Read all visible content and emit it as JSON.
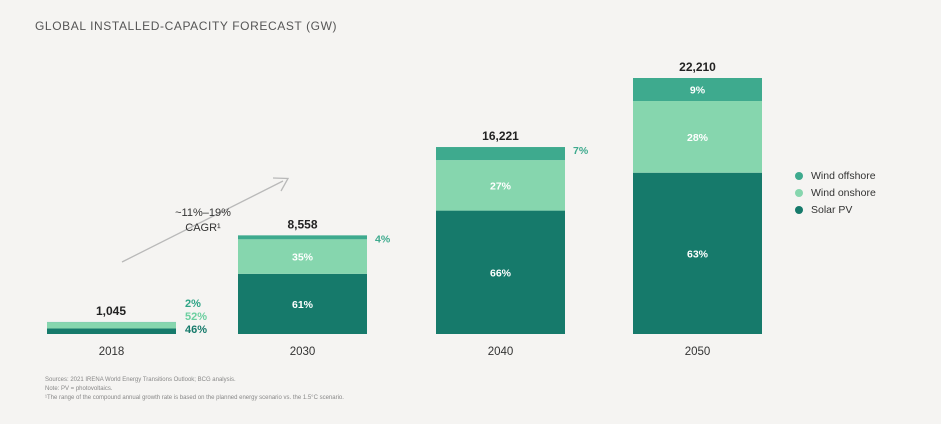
{
  "title": "GLOBAL INSTALLED-CAPACITY FORECAST (GW)",
  "chart_data": {
    "type": "bar",
    "stacked": true,
    "categories": [
      "2018",
      "2030",
      "2040",
      "2050"
    ],
    "totals": [
      1045,
      8558,
      16221,
      22210
    ],
    "total_labels": [
      "1,045",
      "8,558",
      "16,221",
      "22,210"
    ],
    "series": [
      {
        "name": "Solar PV",
        "color": "#167a6b",
        "share_labels": [
          "46%",
          "61%",
          "66%",
          "63%"
        ],
        "shares": [
          46,
          61,
          66,
          63
        ]
      },
      {
        "name": "Wind onshore",
        "color": "#86d6ae",
        "share_labels": [
          "52%",
          "35%",
          "27%",
          "28%"
        ],
        "shares": [
          52,
          35,
          27,
          28
        ]
      },
      {
        "name": "Wind offshore",
        "color": "#3eaa8e",
        "share_labels": [
          "2%",
          "4%",
          "7%",
          "9%"
        ],
        "shares": [
          2,
          4,
          7,
          9
        ]
      }
    ],
    "legend_order": [
      "Wind offshore",
      "Wind onshore",
      "Solar PV"
    ],
    "legend_position": "right",
    "grid": false,
    "ylim": [
      0,
      22210
    ]
  },
  "annotation": {
    "line1": "~11%–19%",
    "line2": "CAGR¹"
  },
  "notes": {
    "sources": "Sources: 2021 IRENA World Energy Transitions Outlook; BCG analysis.",
    "note": "Note: PV = photovoltaics.",
    "footnote": "¹The range of the compound annual growth rate is based on the planned energy scenario vs. the 1.5°C scenario."
  }
}
